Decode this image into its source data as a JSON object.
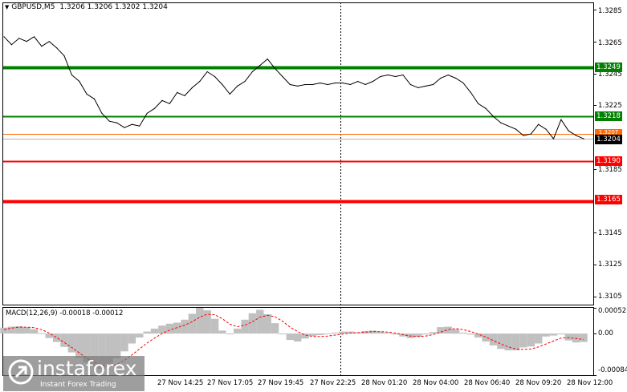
{
  "header": {
    "symbol": "GBPUSD,M5",
    "ohlc": "1.3206 1.3206 1.3202 1.3204"
  },
  "price_axis": {
    "ticks": [
      "1.3285",
      "1.3265",
      "1.3245",
      "1.3225",
      "1.3185",
      "1.3145",
      "1.3125",
      "1.3105"
    ]
  },
  "levels": [
    {
      "label": "1.3249",
      "value": 1.3249,
      "color": "#008000",
      "kind": "resistance"
    },
    {
      "label": "1.3218",
      "value": 1.3218,
      "color": "#008000",
      "kind": "resistance"
    },
    {
      "label": "1.3190",
      "value": 1.319,
      "color": "#ff0000",
      "kind": "support"
    },
    {
      "label": "1.3165",
      "value": 1.3165,
      "color": "#ff0000",
      "kind": "support"
    }
  ],
  "current_price": {
    "label": "1.3204",
    "value": 1.3204
  },
  "ask_price": {
    "label": "1.3207",
    "value": 1.3207,
    "color": "#ff6a00"
  },
  "macd": {
    "title": "MACD(12,26,9) -0.00018 -0.00012",
    "ticks": [
      "0.00052",
      "0.00",
      "-0.00084"
    ]
  },
  "time_axis": {
    "labels": [
      "27 Nov 14:25",
      "27 Nov 17:05",
      "27 Nov 19:45",
      "27 Nov 22:25",
      "28 Nov 01:20",
      "28 Nov 04:00",
      "28 Nov 06:40",
      "28 Nov 09:20",
      "28 Nov 12:00"
    ]
  },
  "watermark": {
    "brand": "instaforex",
    "tagline": "Instant Forex Trading"
  },
  "chart_data": {
    "type": "line",
    "title": "GBPUSD,M5",
    "series": [
      {
        "values": [
          1.3268,
          1.3263,
          1.3267,
          1.3265,
          1.3268,
          1.3262,
          1.3265,
          1.3261,
          1.3256,
          1.3244,
          1.324,
          1.3232,
          1.3229,
          1.322,
          1.3215,
          1.3214,
          1.3211,
          1.3213,
          1.3212,
          1.322,
          1.3223,
          1.3228,
          1.3226,
          1.3233,
          1.3231,
          1.3236,
          1.324,
          1.3246,
          1.3243,
          1.3238,
          1.3232,
          1.3237,
          1.324,
          1.3246,
          1.325,
          1.3254,
          1.3248,
          1.3243,
          1.3238,
          1.3237,
          1.3238,
          1.3238,
          1.3239,
          1.3238,
          1.3239,
          1.3239,
          1.3238,
          1.324,
          1.3238,
          1.324,
          1.3243,
          1.3244,
          1.3243,
          1.3244,
          1.3238,
          1.3236,
          1.3237,
          1.3238,
          1.3242,
          1.3244,
          1.3242,
          1.3239,
          1.3233,
          1.3226,
          1.3223,
          1.3218,
          1.3214,
          1.3212,
          1.321,
          1.3206,
          1.3207,
          1.3213,
          1.321,
          1.3204,
          1.3216,
          1.3209,
          1.3206,
          1.3204
        ]
      }
    ],
    "macd_hist": [
      0.00012,
      0.00014,
      0.00015,
      0.00013,
      9e-05,
      1e-05,
      -9e-05,
      -0.00017,
      -0.00027,
      -0.00038,
      -0.00049,
      -0.00058,
      -0.00066,
      -0.00071,
      -0.00062,
      -0.0005,
      -0.00036,
      -0.0002,
      -8e-05,
      4e-05,
      0.0001,
      0.00016,
      0.0002,
      0.00022,
      0.00028,
      0.0004,
      0.00052,
      0.00047,
      0.0003,
      6e-05,
      0.0,
      0.0001,
      0.00028,
      0.00041,
      0.00048,
      0.00039,
      0.00021,
      0.0,
      -0.00013,
      -0.00016,
      -0.0001,
      -5e-05,
      -3e-05,
      0.0,
      2e-05,
      4e-05,
      4e-05,
      2e-05,
      5e-05,
      6e-05,
      4e-05,
      2e-05,
      -2e-05,
      -6e-05,
      -9e-05,
      -7e-05,
      -2e-05,
      3e-05,
      0.00013,
      0.00014,
      9e-05,
      2e-05,
      -2e-05,
      -8e-05,
      -0.00016,
      -0.00024,
      -0.00031,
      -0.00034,
      -0.00034,
      -0.00028,
      -0.00026,
      -0.0002,
      -6e-05,
      -4e-05,
      0.0,
      -0.00014,
      -0.00018,
      -0.00017
    ],
    "macd_signal": [
      8e-05,
      0.00011,
      0.00013,
      0.00013,
      0.00012,
      8e-05,
      1e-05,
      -8e-05,
      -0.00018,
      -0.00028,
      -0.00039,
      -0.0005,
      -0.00058,
      -0.00064,
      -0.00066,
      -0.00062,
      -0.00054,
      -0.00043,
      -0.00031,
      -0.00019,
      -9e-05,
      0.0,
      7e-05,
      0.00012,
      0.00017,
      0.00024,
      0.00033,
      0.00039,
      0.00038,
      0.0003,
      0.00019,
      0.00014,
      0.00017,
      0.00024,
      0.00033,
      0.00037,
      0.00034,
      0.00025,
      0.00013,
      4e-05,
      -3e-05,
      -6e-05,
      -6e-05,
      -5e-05,
      -3e-05,
      -1e-05,
      1e-05,
      2e-05,
      3e-05,
      4e-05,
      4e-05,
      3e-05,
      1e-05,
      -2e-05,
      -5e-05,
      -6e-05,
      -5e-05,
      -2e-05,
      3e-05,
      8e-05,
      0.0001,
      8e-05,
      4e-05,
      -1e-05,
      -7e-05,
      -0.00014,
      -0.00021,
      -0.00027,
      -0.00031,
      -0.00032,
      -0.00031,
      -0.00027,
      -0.00021,
      -0.00015,
      -9e-05,
      -8e-05,
      -0.0001,
      -0.00012
    ],
    "ylim": [
      1.31,
      1.3289
    ],
    "macd_ylim": [
      -0.00084,
      0.00052
    ]
  }
}
